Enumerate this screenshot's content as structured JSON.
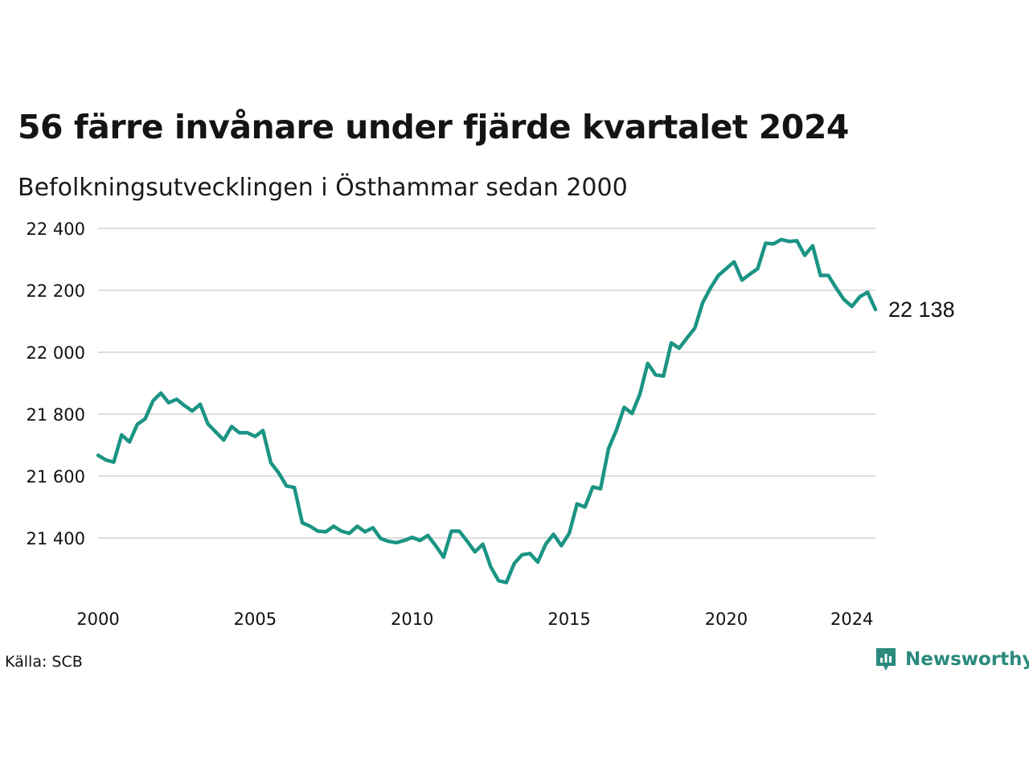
{
  "title": "56 färre invånare under fjärde kvartalet 2024",
  "subtitle": "Befolkningsutvecklingen i Östhammar sedan 2000",
  "source": "Källa: SCB",
  "brand": {
    "name": "Newsworthy",
    "icon": "newsworthy-logo-icon"
  },
  "colors": {
    "line": "#1b9484",
    "grid": "#dddddd",
    "brand": "#2a8a7d"
  },
  "chart_data": {
    "type": "line",
    "title": "56 färre invånare under fjärde kvartalet 2024",
    "subtitle": "Befolkningsutvecklingen i Östhammar sedan 2000",
    "xlabel": "",
    "ylabel": "",
    "xlim": [
      2000,
      2024.75
    ],
    "ylim": [
      21250,
      22420
    ],
    "x_ticks": [
      2000,
      2005,
      2010,
      2015,
      2020,
      2024
    ],
    "x_tick_labels": [
      "2000",
      "2005",
      "2010",
      "2015",
      "2020",
      "2024"
    ],
    "y_ticks": [
      21400,
      21600,
      21800,
      22000,
      22200,
      22400
    ],
    "y_tick_labels": [
      "21 400",
      "21 600",
      "21 800",
      "22 000",
      "22 200",
      "22 400"
    ],
    "grid": true,
    "end_label": "22 138",
    "series": [
      {
        "x_start": 2000,
        "x_step": 0.25,
        "values": [
          21667,
          21652,
          21645,
          21733,
          21710,
          21767,
          21785,
          21843,
          21868,
          21837,
          21848,
          21828,
          21810,
          21832,
          21768,
          21742,
          21716,
          21760,
          21740,
          21740,
          21728,
          21747,
          21643,
          21610,
          21568,
          21563,
          21449,
          21438,
          21422,
          21420,
          21438,
          21422,
          21415,
          21438,
          21420,
          21433,
          21398,
          21389,
          21385,
          21392,
          21402,
          21392,
          21408,
          21375,
          21338,
          21422,
          21422,
          21390,
          21355,
          21380,
          21307,
          21262,
          21256,
          21318,
          21346,
          21350,
          21322,
          21380,
          21412,
          21375,
          21415,
          21510,
          21500,
          21565,
          21559,
          21688,
          21748,
          21822,
          21802,
          21865,
          21964,
          21927,
          21923,
          22030,
          22013,
          22046,
          22078,
          22160,
          22208,
          22248,
          22270,
          22292,
          22233,
          22252,
          22270,
          22352,
          22350,
          22364,
          22358,
          22360,
          22313,
          22344,
          22248,
          22248,
          22207,
          22170,
          22148,
          22179,
          22194,
          22138
        ]
      }
    ]
  }
}
